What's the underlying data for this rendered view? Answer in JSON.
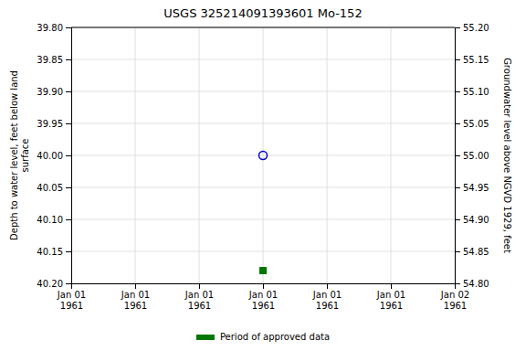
{
  "chart_data": {
    "type": "scatter",
    "title": "USGS 325214091393601 Mo-152",
    "ylabel": "Depth to water level, feet below land\nsurface",
    "y2label": "Groundwater level above NGVD 1929, feet",
    "categories": [
      "Jan 01\n1961",
      "Jan 01\n1961",
      "Jan 01\n1961",
      "Jan 01\n1961",
      "Jan 01\n1961",
      "Jan 01\n1961",
      "Jan 02\n1961"
    ],
    "ylim": [
      40.2,
      39.8
    ],
    "yticks": [
      {
        "value": 39.8,
        "label": "39.80"
      },
      39.85,
      {
        "value": 39.9,
        "label": "39.90"
      },
      39.95,
      {
        "value": 40.0,
        "label": "40.00"
      },
      40.05,
      {
        "value": 40.1,
        "label": "40.10"
      },
      40.15,
      {
        "value": 40.2,
        "label": "40.20"
      }
    ],
    "y2lim": [
      54.8,
      55.2
    ],
    "y2ticks": [
      {
        "value": 55.2,
        "label": "55.20"
      },
      55.15,
      {
        "value": 55.1,
        "label": "55.10"
      },
      55.05,
      {
        "value": 55.0,
        "label": "55.00"
      },
      54.95,
      {
        "value": 54.9,
        "label": "54.90"
      },
      54.85,
      {
        "value": 54.8,
        "label": "54.80"
      }
    ],
    "grid": true,
    "legend": "bottom",
    "series": [
      {
        "values": [
          null,
          null,
          null,
          40.0,
          null,
          null,
          null
        ],
        "color": "#0000cc",
        "marker": "circle-open"
      },
      {
        "name": "Period of approved data",
        "values": [
          null,
          null,
          null,
          40.18,
          null,
          null,
          null
        ],
        "color": "#007700",
        "marker": "square"
      }
    ]
  }
}
